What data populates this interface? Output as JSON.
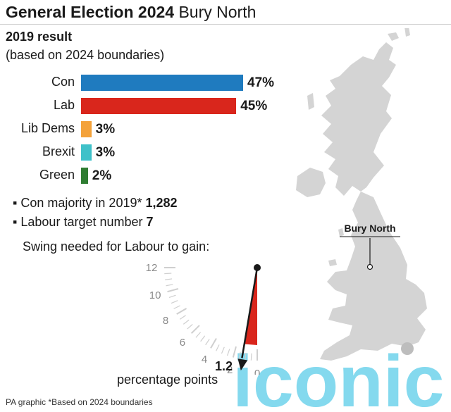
{
  "header": {
    "title_bold": "General Election 2024",
    "title_regular": "Bury North"
  },
  "result": {
    "heading": "2019 result",
    "subheading": "(based on 2024 boundaries)"
  },
  "chart_data": {
    "type": "bar",
    "orientation": "horizontal",
    "categories": [
      "Con",
      "Lab",
      "Lib Dems",
      "Brexit",
      "Green"
    ],
    "values": [
      47,
      45,
      3,
      3,
      2
    ],
    "value_labels": [
      "47%",
      "45%",
      "3%",
      "3%",
      "2%"
    ],
    "colors": [
      "#1f7bbf",
      "#d9261c",
      "#f4a23a",
      "#3fc1c9",
      "#2f7d32"
    ],
    "unit": "%"
  },
  "facts": {
    "majority_prefix": "Con majority in 2019*",
    "majority_value": "1,282",
    "target_prefix": "Labour target number",
    "target_value": "7"
  },
  "swing": {
    "heading": "Swing needed for Labour to gain:",
    "value": 1.2,
    "value_label": "1.2",
    "unit_label": "percentage points",
    "scale_max": 12,
    "tick_labels": [
      "12",
      "10",
      "8",
      "6",
      "4",
      "2",
      "0"
    ],
    "pointer_color": "#d9261c"
  },
  "map": {
    "label": "Bury North",
    "land_color": "#d4d4d4"
  },
  "watermark": {
    "text": "iconic",
    "color": "#6fd3ec"
  },
  "footer": {
    "note": "PA graphic *Based on 2024 boundaries"
  }
}
